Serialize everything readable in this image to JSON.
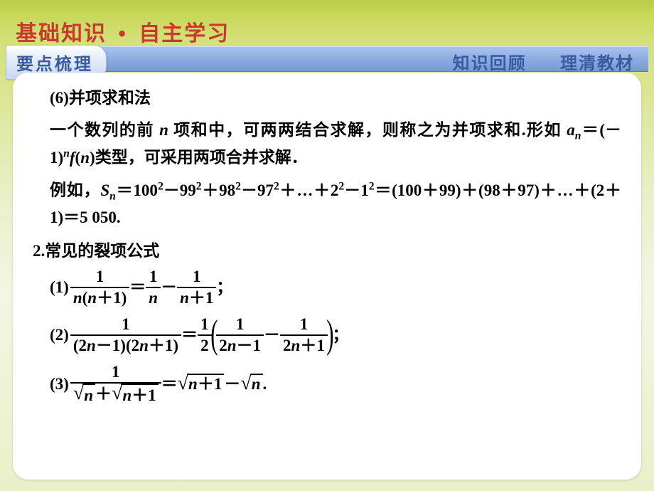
{
  "colors": {
    "accent_red": "#c83a2e",
    "accent_blue": "#3a5aa0",
    "card_bg": "#ffffff",
    "page_bg_top": "#b8cc45",
    "page_bg_bottom": "#e8f0c8"
  },
  "header": {
    "title_left": "基础知识",
    "title_right": "自主学习",
    "dot": "•"
  },
  "subbar": {
    "tab": "要点梳理",
    "right_a": "知识回顾",
    "right_b": "理清教材"
  },
  "body": {
    "p1": "(6)并项求和法",
    "p2": "一个数列的前 ",
    "p2_n": "n",
    "p2b": " 项和中，可两两结合求解，则称之为并项求和.形如 ",
    "p2_formula_a": "a",
    "p2_formula_eq": "＝(－1)",
    "p2_formula_fn": "f",
    "p2_formula_paren": "(",
    "p2_formula_n2": "n",
    "p2_formula_close": ")",
    "p2c": "类型，可采用两项合并求解．",
    "p3a": "例如，",
    "p3_S": "S",
    "p3b": "＝100",
    "p3c": "－99",
    "p3d": "＋98",
    "p3e": "－97",
    "p3f": "＋…＋2",
    "p3g": "－1",
    "p3h": "＝(100＋99)＋(98＋97)＋…＋(2＋1)＝5 050.",
    "sec2": "2.常见的裂项公式",
    "f1_lbl": "(1)",
    "f1_num1": "1",
    "f1_den1_a": "n",
    "f1_den1_b": "(",
    "f1_den1_c": "n",
    "f1_den1_d": "＋1)",
    "f1_eq": "＝",
    "f1_num2": "1",
    "f1_den2": "n",
    "f1_minus": "－",
    "f1_num3": "1",
    "f1_den3_a": "n",
    "f1_den3_b": "＋1",
    "f1_end": "；",
    "f2_lbl": "(2)",
    "f2_num1": "1",
    "f2_den1": "(2",
    "f2_den1n1": "n",
    "f2_den1b": "－1)(2",
    "f2_den1n2": "n",
    "f2_den1c": "＋1)",
    "f2_eq": "＝",
    "f2_half_num": "1",
    "f2_half_den": "2",
    "f2_in_num1": "1",
    "f2_in_den1a": "2",
    "f2_in_den1n": "n",
    "f2_in_den1b": "－1",
    "f2_minus": "－",
    "f2_in_num2": "1",
    "f2_in_den2a": "2",
    "f2_in_den2n": "n",
    "f2_in_den2b": "＋1",
    "f2_end": "；",
    "f3_lbl": "(3)",
    "f3_num": "1",
    "f3_den_n1": "n",
    "f3_den_plus": "＋",
    "f3_den_n2": "n",
    "f3_den_p1": "＋1",
    "f3_eq": "＝",
    "f3_r1_n": "n",
    "f3_r1_p": "＋1",
    "f3_minus": "－",
    "f3_r2_n": "n",
    "f3_end": "."
  }
}
